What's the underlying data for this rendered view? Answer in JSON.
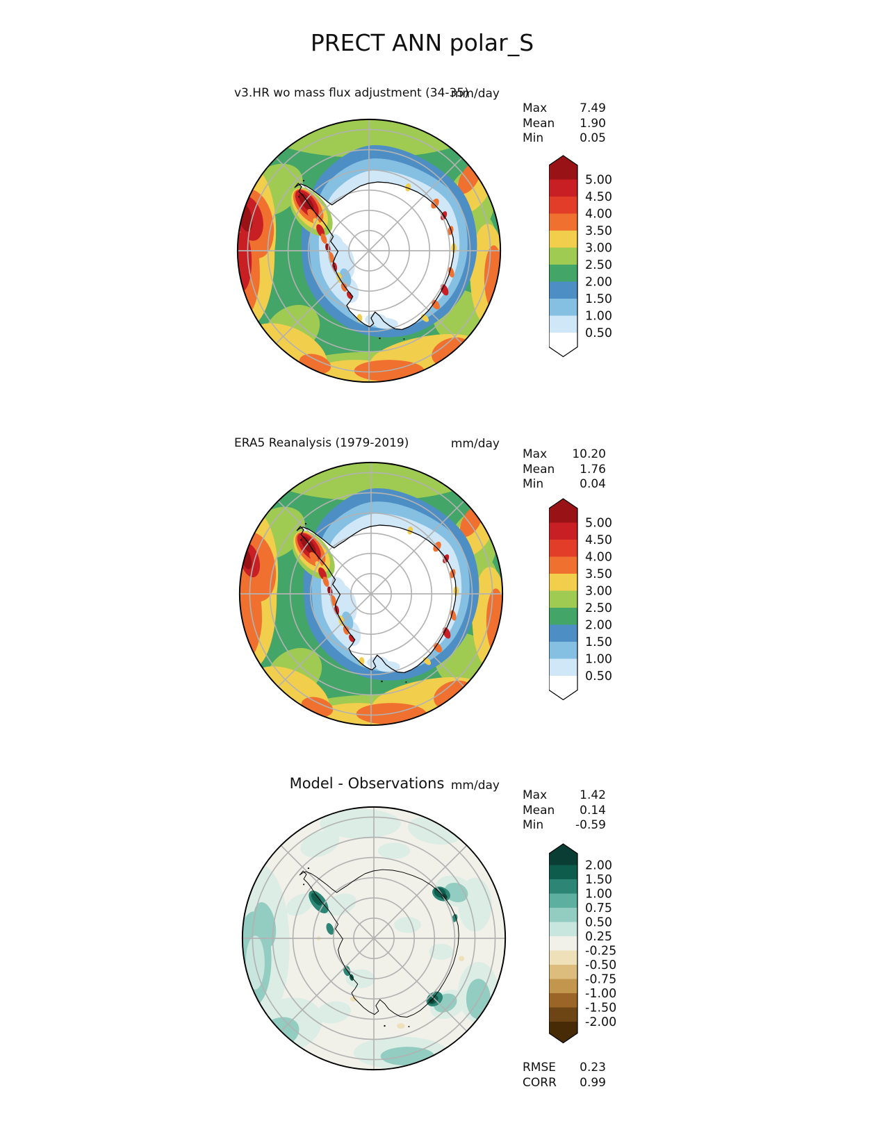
{
  "figure": {
    "title": "PRECT ANN polar_S"
  },
  "chart_data": {
    "type": "heatmap",
    "subtype": "filled-contour polar stereographic maps (Antarctica)",
    "projection": "south_polar",
    "units": "mm/day",
    "panels": [
      {
        "id": "model",
        "title": "v3.HR wo mass flux adjustment (34-35)",
        "units": "mm/day",
        "stats": [
          {
            "label": "Max",
            "value": "7.49"
          },
          {
            "label": "Mean",
            "value": "1.90"
          },
          {
            "label": "Min",
            "value": "0.05"
          }
        ],
        "colorbar": {
          "extend": "both",
          "labels": [
            "5.00",
            "4.50",
            "4.00",
            "3.50",
            "3.00",
            "2.50",
            "2.00",
            "1.50",
            "1.00",
            "0.50"
          ],
          "colors": [
            "#981216",
            "#c81f25",
            "#e23d28",
            "#f0702f",
            "#f2ce4d",
            "#9fcb52",
            "#43a567",
            "#4d8fc4",
            "#85bfe2",
            "#cfe7f7",
            "#ffffff"
          ]
        },
        "map_style": "precip"
      },
      {
        "id": "reference",
        "title": "ERA5 Reanalysis (1979-2019)",
        "units": "mm/day",
        "stats": [
          {
            "label": "Max",
            "value": "10.20"
          },
          {
            "label": "Mean",
            "value": "1.76"
          },
          {
            "label": "Min",
            "value": "0.04"
          }
        ],
        "colorbar": {
          "extend": "both",
          "labels": [
            "5.00",
            "4.50",
            "4.00",
            "3.50",
            "3.00",
            "2.50",
            "2.00",
            "1.50",
            "1.00",
            "0.50"
          ],
          "colors": [
            "#981216",
            "#c81f25",
            "#e23d28",
            "#f0702f",
            "#f2ce4d",
            "#9fcb52",
            "#43a567",
            "#4d8fc4",
            "#85bfe2",
            "#cfe7f7",
            "#ffffff"
          ]
        },
        "map_style": "precip"
      },
      {
        "id": "difference",
        "title": "Model - Observations",
        "units": "mm/day",
        "stats": [
          {
            "label": "Max",
            "value": "1.42"
          },
          {
            "label": "Mean",
            "value": "0.14"
          },
          {
            "label": "Min",
            "value": "-0.59"
          }
        ],
        "colorbar": {
          "extend": "both",
          "labels": [
            "2.00",
            "1.50",
            "1.00",
            "0.75",
            "0.50",
            "0.25",
            "-0.25",
            "-0.50",
            "-0.75",
            "-1.00",
            "-1.50",
            "-2.00"
          ],
          "colors": [
            "#0a3d33",
            "#0e5c4c",
            "#2c8575",
            "#5dafa0",
            "#93ccc0",
            "#c8e6de",
            "#f1f1ea",
            "#eee0b8",
            "#dcbd7e",
            "#c2974d",
            "#9a6527",
            "#6d4413",
            "#472b06"
          ]
        },
        "extras": [
          {
            "label": "RMSE",
            "value": "0.23"
          },
          {
            "label": "CORR",
            "value": "0.99"
          }
        ],
        "map_style": "diff"
      }
    ]
  }
}
